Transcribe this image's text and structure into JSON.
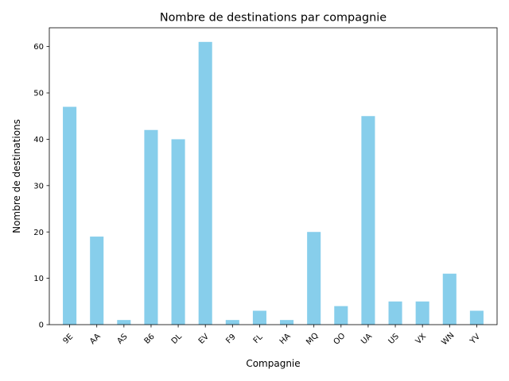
{
  "chart_data": {
    "type": "bar",
    "title": "Nombre de destinations par compagnie",
    "xlabel": "Compagnie",
    "ylabel": "Nombre de destinations",
    "categories": [
      "9E",
      "AA",
      "AS",
      "B6",
      "DL",
      "EV",
      "F9",
      "FL",
      "HA",
      "MQ",
      "OO",
      "UA",
      "US",
      "VX",
      "WN",
      "YV"
    ],
    "values": [
      47,
      19,
      1,
      42,
      40,
      61,
      1,
      3,
      1,
      20,
      4,
      45,
      5,
      5,
      11,
      3
    ],
    "ylim": [
      0,
      64.05
    ],
    "yticks": [
      0,
      10,
      20,
      30,
      40,
      50,
      60
    ],
    "grid": false,
    "legend": "none",
    "bar_color": "#87ceeb"
  }
}
